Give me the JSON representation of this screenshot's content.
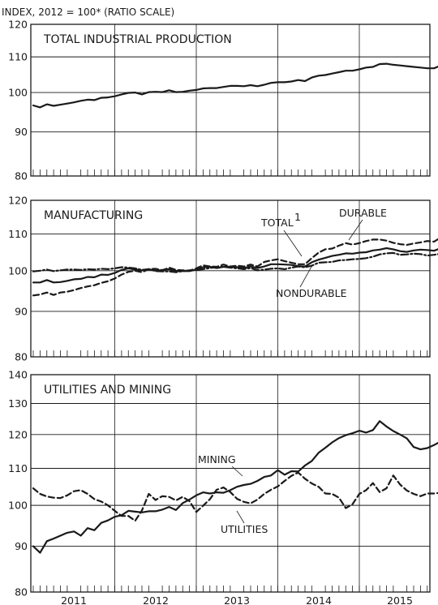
{
  "header_label": "INDEX, 2012 = 100* (RATIO SCALE)",
  "chart_data": {
    "type": "line",
    "y_scale": "log",
    "x_label_years": [
      "2011",
      "2012",
      "2013",
      "2014",
      "2015"
    ],
    "panels": [
      {
        "title": "TOTAL INDUSTRIAL PRODUCTION",
        "ylim": [
          80,
          120
        ],
        "yticks": [
          80,
          90,
          100,
          110,
          120
        ],
        "series": [
          {
            "style": "solid",
            "x_start": "2010-07",
            "values": [
              96.6,
              96.1,
              96.9,
              96.5,
              96.8,
              97.1,
              97.4,
              97.8,
              98.1,
              98.0,
              98.6,
              98.7,
              99.0,
              99.5,
              99.9,
              100.0,
              99.5,
              100.1,
              100.2,
              100.1,
              100.6,
              100.1,
              100.2,
              100.5,
              100.7,
              101.1,
              101.2,
              101.2,
              101.5,
              101.8,
              101.8,
              101.7,
              102.0,
              101.7,
              102.1,
              102.6,
              102.8,
              102.8,
              103.0,
              103.4,
              103.1,
              104.1,
              104.6,
              104.8,
              105.2,
              105.6,
              106.0,
              106.0,
              106.4,
              106.9,
              107.1,
              107.9,
              108.0,
              107.7,
              107.5,
              107.3,
              107.1,
              106.9,
              106.7,
              106.7,
              107.5,
              107.2
            ]
          }
        ]
      },
      {
        "title": "MANUFACTURING",
        "ylim": [
          80,
          120
        ],
        "yticks": [
          80,
          90,
          100,
          110,
          120
        ],
        "annotations": [
          "TOTAL",
          "1",
          "DURABLE",
          "NONDURABLE"
        ],
        "series": [
          {
            "style": "solid",
            "x_start": "2010-07",
            "values": [
              97.0,
              97.0,
              97.6,
              97.0,
              97.1,
              97.4,
              97.8,
              97.9,
              98.4,
              98.3,
              99.0,
              98.9,
              99.4,
              100.2,
              100.6,
              100.3,
              100.1,
              100.4,
              100.0,
              100.2,
              100.4,
              100.0,
              99.9,
              99.9,
              100.3,
              100.9,
              101.0,
              100.7,
              101.0,
              101.0,
              100.9,
              100.7,
              101.1,
              100.7,
              101.1,
              101.7,
              101.7,
              101.6,
              101.5,
              101.2,
              101.1,
              102.2,
              102.9,
              103.4,
              103.9,
              104.2,
              104.6,
              104.5,
              104.8,
              104.9,
              105.4,
              105.6,
              106.0,
              105.7,
              105.2,
              105.0,
              105.4,
              105.6,
              105.5,
              105.3,
              106.0,
              105.7
            ]
          },
          {
            "style": "dashed",
            "x_start": "2010-07",
            "values": [
              93.8,
              94.0,
              94.5,
              93.9,
              94.5,
              94.7,
              95.1,
              95.6,
              96.0,
              96.3,
              96.9,
              97.3,
              98.0,
              99.0,
              99.7,
              100.0,
              99.6,
              100.4,
              100.5,
              100.1,
              100.8,
              100.2,
              100.1,
              100.0,
              100.6,
              101.4,
              101.1,
              101.0,
              101.6,
              101.1,
              101.3,
              101.1,
              101.6,
              101.1,
              102.3,
              102.7,
              103.0,
              102.5,
              102.1,
              101.7,
              101.7,
              103.3,
              104.8,
              105.7,
              105.9,
              106.7,
              107.4,
              107.0,
              107.4,
              108.0,
              108.4,
              108.4,
              108.1,
              107.5,
              107.1,
              106.9,
              107.3,
              107.6,
              108.0,
              107.8,
              109.0,
              108.2
            ]
          },
          {
            "style": "dash-dot",
            "x_start": "2010-07",
            "values": [
              99.8,
              100.0,
              100.3,
              99.9,
              100.1,
              100.3,
              100.3,
              100.2,
              100.4,
              100.3,
              100.5,
              100.4,
              100.6,
              100.9,
              100.8,
              100.6,
              100.2,
              100.4,
              99.9,
              99.8,
              99.8,
              99.6,
              99.9,
              100.1,
              100.2,
              100.4,
              100.7,
              100.9,
              101.0,
              100.8,
              100.6,
              100.4,
              100.7,
              100.1,
              100.3,
              100.5,
              100.6,
              100.4,
              100.8,
              101.1,
              100.9,
              101.3,
              102.1,
              102.2,
              102.3,
              102.7,
              102.8,
              103.0,
              103.1,
              103.3,
              103.7,
              104.3,
              104.6,
              104.7,
              104.2,
              104.3,
              104.5,
              104.4,
              104.0,
              104.2,
              104.5,
              104.6
            ]
          }
        ]
      },
      {
        "title": "UTILITIES AND MINING",
        "ylim": [
          80,
          140
        ],
        "yticks": [
          80,
          90,
          100,
          110,
          120,
          130,
          140
        ],
        "annotations": [
          "MINING",
          "UTILITIES"
        ],
        "series": [
          {
            "style": "solid",
            "x_start": "2010-07",
            "values": [
              90.0,
              88.5,
              91.2,
              91.8,
              92.5,
              93.2,
              93.5,
              92.5,
              94.3,
              93.8,
              95.6,
              96.2,
              97.1,
              97.5,
              98.6,
              98.4,
              98.2,
              98.5,
              98.5,
              98.9,
              99.6,
              98.8,
              100.6,
              101.5,
              102.6,
              103.4,
              103.1,
              103.4,
              103.3,
              104.0,
              104.9,
              105.4,
              105.7,
              106.5,
              107.6,
              108.0,
              109.5,
              108.2,
              109.2,
              109.1,
              110.8,
              112.1,
              114.5,
              116.0,
              117.6,
              118.9,
              119.8,
              120.4,
              121.2,
              120.6,
              121.4,
              124.2,
              122.5,
              121.1,
              120.0,
              118.8,
              116.2,
              115.5,
              115.9,
              116.8,
              117.9,
              117.2
            ]
          },
          {
            "style": "dashed",
            "x_start": "2010-07",
            "values": [
              104.5,
              103.0,
              102.3,
              102.0,
              101.9,
              102.6,
              103.7,
              104.0,
              103.0,
              101.6,
              101.0,
              100.0,
              98.6,
              97.3,
              97.3,
              96.1,
              98.7,
              103.0,
              101.4,
              102.4,
              102.2,
              101.3,
              102.2,
              101.1,
              98.3,
              99.9,
              101.6,
              104.1,
              104.7,
              103.5,
              101.7,
              100.9,
              100.5,
              101.5,
              103.0,
              104.1,
              105.0,
              106.5,
              107.9,
              108.8,
              107.1,
              105.8,
              104.9,
              103.1,
              103.0,
              102.0,
              99.3,
              100.3,
              103.0,
              104.0,
              105.9,
              103.5,
              104.5,
              108.0,
              105.5,
              103.9,
              103.0,
              102.4,
              103.1,
              103.1,
              103.3,
              103.7
            ]
          }
        ]
      }
    ]
  }
}
